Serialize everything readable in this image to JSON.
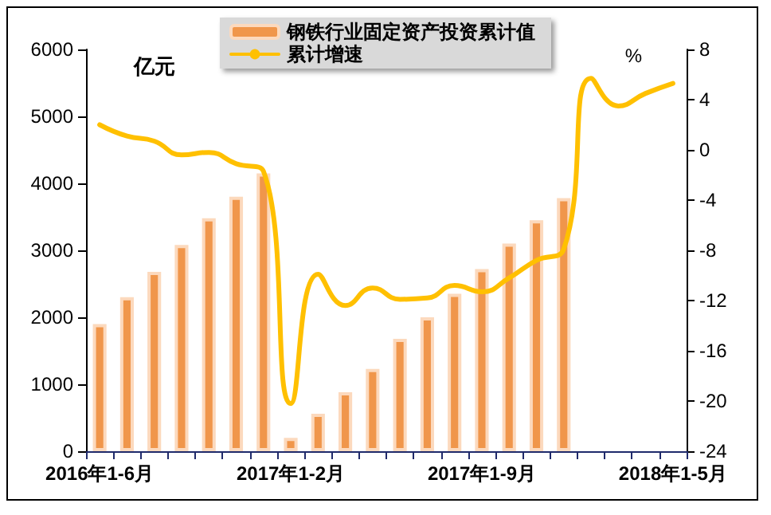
{
  "chart_data": {
    "type": "bar",
    "categories": [
      "2016年1-6月",
      null,
      null,
      null,
      null,
      null,
      null,
      "2017年1-2月",
      null,
      null,
      null,
      null,
      null,
      null,
      "2017年1-9月",
      null,
      null,
      null,
      null,
      null,
      null,
      "2018年1-5月"
    ],
    "series": [
      {
        "name": "钢铁行业固定资产投资累计值",
        "color": "#f0964b",
        "values": [
          1900,
          2300,
          2680,
          3080,
          3480,
          3800,
          4150,
          200,
          560,
          880,
          1230,
          1680,
          2000,
          2350,
          2720,
          3100,
          3450,
          3780,
          null,
          null,
          null,
          null
        ]
      },
      {
        "name": "累计增速",
        "type": "line",
        "axis": "y2",
        "color": "#ffc000",
        "values": [
          2.0,
          1.1,
          0.7,
          -0.4,
          -0.2,
          -1.1,
          -1.7,
          -20.2,
          -9.9,
          -12.4,
          -11.0,
          -11.9,
          -11.8,
          -10.8,
          -11.3,
          -10.2,
          -8.8,
          -7.9,
          5.7,
          3.5,
          4.5,
          5.3
        ]
      }
    ],
    "ylabel": "亿元",
    "y2label": "%",
    "ylim": [
      0,
      6000
    ],
    "yticks": [
      0,
      1000,
      2000,
      3000,
      4000,
      5000,
      6000
    ],
    "y2lim": [
      -24,
      8
    ],
    "y2ticks": [
      -24,
      -20,
      -16,
      -12,
      -8,
      -4,
      0,
      4,
      8
    ],
    "legend": "top",
    "grid": false,
    "marker": "none",
    "line_style": "solid"
  }
}
